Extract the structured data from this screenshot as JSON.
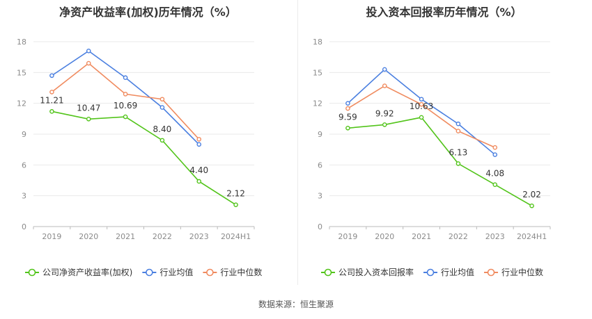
{
  "chart_data": [
    {
      "type": "line",
      "title": "净资产收益率(加权)历年情况（%）",
      "categories": [
        "2019",
        "2020",
        "2021",
        "2022",
        "2023",
        "2024H1"
      ],
      "ylim": [
        0,
        18
      ],
      "yticks": [
        0,
        3,
        6,
        9,
        12,
        15,
        18
      ],
      "grid": true,
      "legend_position": "bottom",
      "series": [
        {
          "name": "公司净资产收益率(加权)",
          "color": "#52c41a",
          "values": [
            11.21,
            10.47,
            10.69,
            8.4,
            4.4,
            2.12
          ],
          "labels": [
            "11.21",
            "10.47",
            "10.69",
            "8.40",
            "4.40",
            "2.12"
          ]
        },
        {
          "name": "行业均值",
          "color": "#4a7fe0",
          "values": [
            14.7,
            17.1,
            14.5,
            11.6,
            8.0,
            null
          ]
        },
        {
          "name": "行业中位数",
          "color": "#f08b5f",
          "values": [
            13.1,
            15.9,
            12.9,
            12.4,
            8.5,
            null
          ]
        }
      ]
    },
    {
      "type": "line",
      "title": "投入资本回报率历年情况（%）",
      "categories": [
        "2019",
        "2020",
        "2021",
        "2022",
        "2023",
        "2024H1"
      ],
      "ylim": [
        0,
        18
      ],
      "yticks": [
        0,
        3,
        6,
        9,
        12,
        15,
        18
      ],
      "grid": true,
      "legend_position": "bottom",
      "series": [
        {
          "name": "公司投入资本回报率",
          "color": "#52c41a",
          "values": [
            9.59,
            9.92,
            10.63,
            6.13,
            4.08,
            2.02
          ],
          "labels": [
            "9.59",
            "9.92",
            "10.63",
            "6.13",
            "4.08",
            "2.02"
          ]
        },
        {
          "name": "行业均值",
          "color": "#4a7fe0",
          "values": [
            12.0,
            15.3,
            12.4,
            10.0,
            7.0,
            null
          ]
        },
        {
          "name": "行业中位数",
          "color": "#f08b5f",
          "values": [
            11.5,
            13.7,
            11.9,
            9.3,
            7.7,
            null
          ]
        }
      ]
    }
  ],
  "footer": "数据来源：恒生聚源"
}
